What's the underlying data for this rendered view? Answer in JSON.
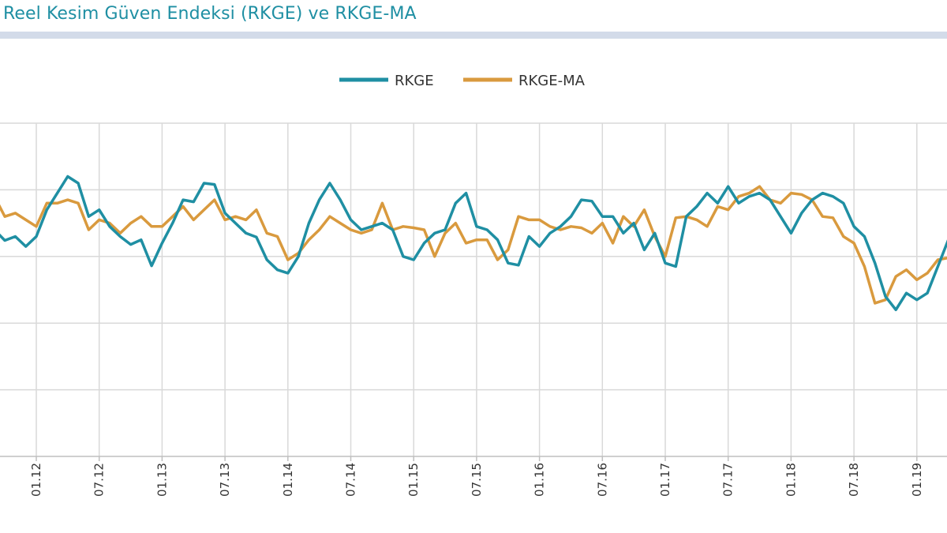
{
  "title": "Reel Kesim Güven Endeksi (RKGE) ve RKGE-MA",
  "chart_data": {
    "type": "line",
    "title": "Reel Kesim Güven Endeksi (RKGE) ve RKGE-MA",
    "xlabel": "",
    "ylabel": "",
    "x_tick_labels": [
      "01.12",
      "07.12",
      "01.13",
      "07.13",
      "01.14",
      "07.14",
      "01.15",
      "07.15",
      "01.16",
      "07.16",
      "01.17",
      "07.17",
      "01.18",
      "07.18",
      "01.19"
    ],
    "x_start": "2011-09",
    "x_end": "2019-03",
    "ylim": [
      75,
      125
    ],
    "grid": true,
    "legend_position": "top-center",
    "colors": {
      "RKGE": "#1f8fa3",
      "RKGE-MA": "#d99a3e"
    },
    "series": [
      {
        "name": "RKGE",
        "values": [
          109.0,
          107.4,
          108.0,
          106.5,
          108.0,
          112.0,
          114.5,
          117.0,
          116.0,
          111.0,
          112.0,
          109.5,
          108.0,
          106.8,
          107.5,
          103.6,
          107.0,
          110.0,
          113.5,
          113.2,
          116.0,
          115.8,
          111.5,
          110.0,
          108.5,
          107.9,
          104.5,
          103.0,
          102.5,
          105.0,
          110.0,
          113.5,
          116.0,
          113.5,
          110.5,
          109.0,
          109.5,
          110.0,
          109.0,
          105.0,
          104.5,
          107.0,
          108.5,
          109.0,
          113.0,
          114.5,
          109.5,
          109.0,
          107.5,
          104.0,
          103.7,
          108.0,
          106.5,
          108.5,
          109.5,
          111.0,
          113.5,
          113.3,
          111.0,
          111.0,
          108.5,
          110.0,
          106.0,
          108.5,
          104.0,
          103.5,
          111.0,
          112.5,
          114.5,
          113.0,
          115.5,
          113.0,
          114.0,
          114.5,
          113.5,
          111.0,
          108.5,
          111.5,
          113.5,
          114.5,
          114.0,
          113.0,
          109.5,
          108.0,
          104.0,
          99.0,
          97.0,
          99.5,
          98.5,
          99.5,
          103.5,
          107.5,
          110.0
        ]
      },
      {
        "name": "RKGE-MA",
        "values": [
          114.0,
          111.0,
          111.5,
          110.5,
          109.5,
          113.0,
          113.0,
          113.5,
          113.0,
          109.0,
          110.5,
          110.0,
          108.5,
          110.0,
          111.0,
          109.5,
          109.5,
          111.0,
          112.5,
          110.5,
          112.0,
          113.5,
          110.5,
          111.0,
          110.5,
          112.0,
          108.5,
          108.0,
          104.5,
          105.5,
          107.5,
          109.0,
          111.0,
          110.0,
          109.0,
          108.5,
          109.0,
          113.0,
          109.0,
          109.5,
          109.3,
          109.0,
          105.0,
          108.5,
          110.0,
          107.0,
          107.5,
          107.5,
          104.5,
          106.0,
          111.0,
          110.5,
          110.5,
          109.5,
          109.0,
          109.5,
          109.3,
          108.5,
          110.0,
          107.0,
          111.0,
          109.5,
          112.0,
          108.0,
          105.0,
          110.8,
          111.0,
          110.5,
          109.5,
          112.5,
          112.0,
          114.0,
          114.5,
          115.5,
          113.5,
          113.0,
          114.5,
          114.3,
          113.5,
          111.0,
          110.8,
          108.0,
          107.0,
          103.5,
          98.0,
          98.5,
          102.0,
          103.0,
          101.5,
          102.5,
          104.5,
          104.8,
          104.0
        ]
      }
    ]
  }
}
